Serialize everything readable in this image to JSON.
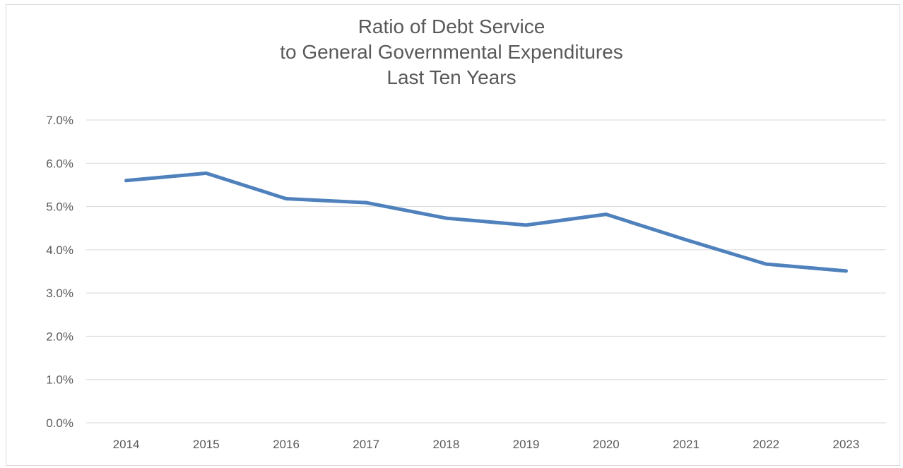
{
  "chart_data": {
    "type": "line",
    "title_lines": [
      "Ratio of Debt Service",
      "to General Governmental Expenditures",
      "Last Ten Years"
    ],
    "categories": [
      "2014",
      "2015",
      "2016",
      "2017",
      "2018",
      "2019",
      "2020",
      "2021",
      "2022",
      "2023"
    ],
    "series": [
      {
        "values": [
          5.6,
          5.77,
          5.18,
          5.09,
          4.73,
          4.57,
          4.82,
          4.23,
          3.67,
          3.51
        ]
      }
    ],
    "ylim": [
      0,
      7
    ],
    "y_ticks": [
      0,
      1,
      2,
      3,
      4,
      5,
      6,
      7
    ],
    "y_tick_labels": [
      "0.0%",
      "1.0%",
      "2.0%",
      "3.0%",
      "4.0%",
      "5.0%",
      "6.0%",
      "7.0%"
    ],
    "grid": true,
    "legend": "none",
    "colors": {
      "line": "#4f81bd",
      "grid": "#d9d9d9",
      "text": "#595959"
    }
  }
}
